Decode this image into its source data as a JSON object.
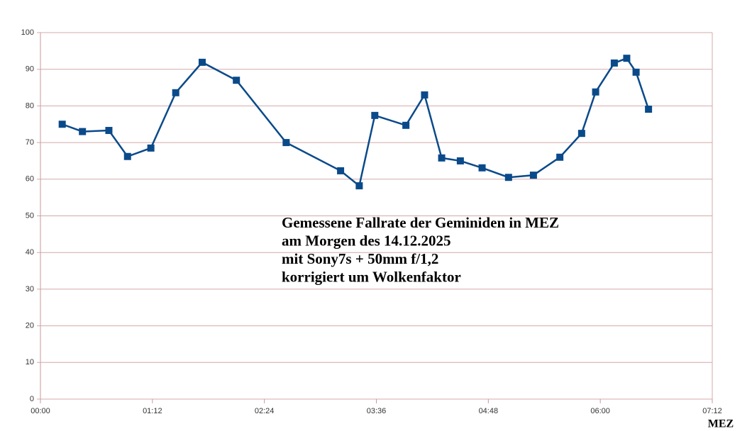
{
  "chart_data": {
    "type": "line",
    "annotation": [
      "Gemessene Fallrate der Geminiden in MEZ",
      "am Morgen des 14.12.2025",
      "mit Sony7s + 50mm f/1,2",
      "korrigiert um Wolkenfaktor"
    ],
    "x_label": "MEZ",
    "x": [
      14,
      27,
      44,
      56,
      71,
      87,
      104,
      126,
      158,
      193,
      205,
      215,
      235,
      247,
      258,
      270,
      284,
      301,
      317,
      334,
      348,
      357,
      369,
      377,
      383,
      391
    ],
    "values": [
      75,
      73,
      73.3,
      66.2,
      68.5,
      83.6,
      91.9,
      87,
      70,
      62.3,
      58.2,
      77.4,
      74.7,
      83,
      65.8,
      65,
      63.1,
      60.5,
      61.1,
      66,
      72.5,
      83.8,
      91.7,
      93,
      89.2,
      79.1
    ],
    "color": "#0a4a8a",
    "xlim": [
      0,
      432
    ],
    "xticks": [
      {
        "value": 0,
        "label": "00:00"
      },
      {
        "value": 72,
        "label": "01:12"
      },
      {
        "value": 144,
        "label": "02:24"
      },
      {
        "value": 216,
        "label": "03:36"
      },
      {
        "value": 288,
        "label": "04:48"
      },
      {
        "value": 360,
        "label": "06:00"
      },
      {
        "value": 432,
        "label": "07:12"
      }
    ],
    "ylim": [
      0,
      100
    ],
    "yticks": [
      0,
      10,
      20,
      30,
      40,
      50,
      60,
      70,
      80,
      90,
      100
    ],
    "grid": true
  }
}
